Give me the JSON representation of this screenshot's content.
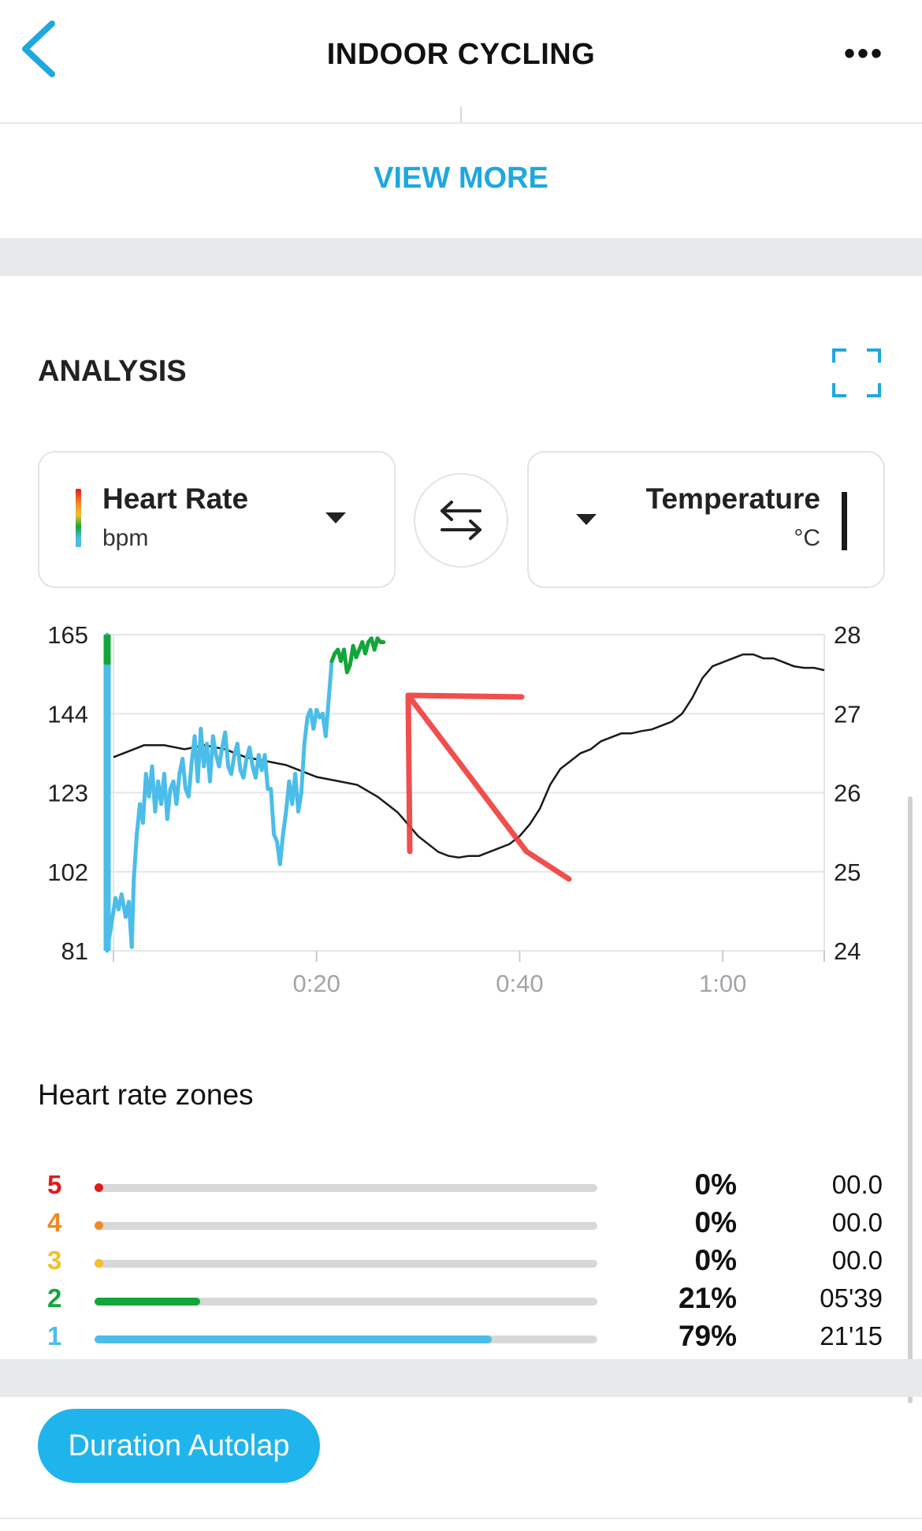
{
  "header": {
    "title": "INDOOR CYCLING",
    "more_label": "•••"
  },
  "view_more": "VIEW MORE",
  "analysis": {
    "title": "ANALYSIS",
    "left_metric": {
      "name": "Heart Rate",
      "unit": "bpm"
    },
    "right_metric": {
      "name": "Temperature",
      "unit": "°C"
    }
  },
  "chart_data": {
    "type": "line",
    "x_ticks": [
      "0:20",
      "0:40",
      "1:00"
    ],
    "y_left_ticks": [
      "165",
      "144",
      "123",
      "102",
      "81"
    ],
    "y_right_ticks": [
      "28",
      "27",
      "26",
      "25",
      "24"
    ],
    "y_left_range": [
      81,
      165
    ],
    "y_right_range": [
      24,
      28
    ],
    "x_range_min": [
      0,
      70
    ],
    "series": [
      {
        "unit": "bpm",
        "points": [
          [
            0,
            165
          ],
          [
            0,
            81
          ],
          [
            0.2,
            95
          ],
          [
            0.5,
            92
          ],
          [
            0.8,
            96
          ],
          [
            1.2,
            90
          ],
          [
            1.5,
            94
          ],
          [
            1.8,
            82
          ],
          [
            2.0,
            100
          ],
          [
            2.3,
            112
          ],
          [
            2.6,
            120
          ],
          [
            2.9,
            115
          ],
          [
            3.2,
            128
          ],
          [
            3.5,
            122
          ],
          [
            3.8,
            130
          ],
          [
            4.1,
            118
          ],
          [
            4.4,
            126
          ],
          [
            4.7,
            120
          ],
          [
            5.0,
            128
          ],
          [
            5.3,
            116
          ],
          [
            5.6,
            124
          ],
          [
            5.9,
            126
          ],
          [
            6.2,
            120
          ],
          [
            6.5,
            128
          ],
          [
            6.8,
            132
          ],
          [
            7.1,
            124
          ],
          [
            7.4,
            122
          ],
          [
            7.7,
            131
          ],
          [
            8.0,
            138
          ],
          [
            8.3,
            126
          ],
          [
            8.6,
            140
          ],
          [
            8.9,
            130
          ],
          [
            9.2,
            136
          ],
          [
            9.5,
            126
          ],
          [
            9.8,
            138
          ],
          [
            10.1,
            133
          ],
          [
            10.4,
            130
          ],
          [
            10.7,
            135
          ],
          [
            11.0,
            139
          ],
          [
            11.3,
            130
          ],
          [
            11.6,
            128
          ],
          [
            11.9,
            133
          ],
          [
            12.2,
            136
          ],
          [
            12.5,
            129
          ],
          [
            12.8,
            127
          ],
          [
            13.1,
            132
          ],
          [
            13.4,
            135
          ],
          [
            13.7,
            130
          ],
          [
            14.0,
            127
          ],
          [
            14.3,
            133
          ],
          [
            14.6,
            129
          ],
          [
            14.9,
            133
          ],
          [
            15.2,
            124
          ],
          [
            15.5,
            124
          ],
          [
            15.8,
            112
          ],
          [
            16.1,
            110
          ],
          [
            16.4,
            104
          ],
          [
            16.7,
            112
          ],
          [
            17.0,
            118
          ],
          [
            17.3,
            126
          ],
          [
            17.6,
            120
          ],
          [
            17.9,
            128
          ],
          [
            18.2,
            118
          ],
          [
            18.5,
            123
          ],
          [
            18.8,
            136
          ],
          [
            19.1,
            143
          ],
          [
            19.4,
            145
          ],
          [
            19.7,
            140
          ],
          [
            20.0,
            145
          ],
          [
            20.3,
            143
          ],
          [
            20.6,
            144
          ],
          [
            20.9,
            138
          ],
          [
            21.2,
            148
          ],
          [
            21.5,
            158
          ],
          [
            21.8,
            160
          ],
          [
            22.1,
            161
          ],
          [
            22.4,
            158
          ],
          [
            22.7,
            161
          ],
          [
            23.0,
            155
          ],
          [
            23.3,
            157
          ],
          [
            23.6,
            162
          ],
          [
            23.9,
            159
          ],
          [
            24.2,
            161
          ],
          [
            24.5,
            163
          ],
          [
            24.8,
            160
          ],
          [
            25.1,
            163
          ],
          [
            25.4,
            164
          ],
          [
            25.7,
            161
          ],
          [
            26.0,
            164
          ],
          [
            26.3,
            163
          ],
          [
            26.6,
            163
          ]
        ]
      },
      {
        "unit": "°C",
        "points": [
          [
            0,
            26.45
          ],
          [
            2,
            26.55
          ],
          [
            3,
            26.6
          ],
          [
            5,
            26.6
          ],
          [
            7,
            26.55
          ],
          [
            9,
            26.6
          ],
          [
            11,
            26.55
          ],
          [
            13,
            26.45
          ],
          [
            15,
            26.4
          ],
          [
            17,
            26.35
          ],
          [
            18,
            26.3
          ],
          [
            20,
            26.2
          ],
          [
            22,
            26.15
          ],
          [
            24,
            26.1
          ],
          [
            26,
            25.95
          ],
          [
            27,
            25.85
          ],
          [
            28,
            25.75
          ],
          [
            29,
            25.6
          ],
          [
            30,
            25.45
          ],
          [
            31,
            25.35
          ],
          [
            32,
            25.25
          ],
          [
            33,
            25.2
          ],
          [
            34,
            25.18
          ],
          [
            35,
            25.2
          ],
          [
            36,
            25.2
          ],
          [
            37,
            25.25
          ],
          [
            38,
            25.3
          ],
          [
            39,
            25.35
          ],
          [
            40,
            25.45
          ],
          [
            41,
            25.6
          ],
          [
            42,
            25.8
          ],
          [
            43,
            26.1
          ],
          [
            44,
            26.3
          ],
          [
            45,
            26.4
          ],
          [
            46,
            26.5
          ],
          [
            47,
            26.55
          ],
          [
            48,
            26.65
          ],
          [
            49,
            26.7
          ],
          [
            50,
            26.75
          ],
          [
            51,
            26.75
          ],
          [
            52,
            26.78
          ],
          [
            53,
            26.8
          ],
          [
            54,
            26.85
          ],
          [
            55,
            26.9
          ],
          [
            56,
            27.0
          ],
          [
            57,
            27.2
          ],
          [
            58,
            27.45
          ],
          [
            59,
            27.6
          ],
          [
            60,
            27.65
          ],
          [
            61,
            27.7
          ],
          [
            62,
            27.75
          ],
          [
            63,
            27.75
          ],
          [
            64,
            27.7
          ],
          [
            65,
            27.7
          ],
          [
            66,
            27.65
          ],
          [
            67,
            27.6
          ],
          [
            68,
            27.58
          ],
          [
            69,
            27.58
          ],
          [
            70,
            27.55
          ]
        ]
      }
    ]
  },
  "hr_zones": {
    "title": "Heart rate zones",
    "zones": [
      {
        "zone": "5",
        "color": "#e01b1b",
        "fraction": 0,
        "percent": "0%",
        "time": "00.0"
      },
      {
        "zone": "4",
        "color": "#f08a25",
        "fraction": 0,
        "percent": "0%",
        "time": "00.0"
      },
      {
        "zone": "3",
        "color": "#f4bf2a",
        "fraction": 0,
        "percent": "0%",
        "time": "00.0"
      },
      {
        "zone": "2",
        "color": "#13a63a",
        "fraction": 0.21,
        "percent": "21%",
        "time": "05'39"
      },
      {
        "zone": "1",
        "color": "#4bbde8",
        "fraction": 0.79,
        "percent": "79%",
        "time": "21'15"
      }
    ]
  },
  "colors": {
    "accent": "#1fa7df",
    "hr_line": "#4bbde8",
    "temp_line": "#1a1a1a"
  },
  "autolap_button": "Duration Autolap"
}
